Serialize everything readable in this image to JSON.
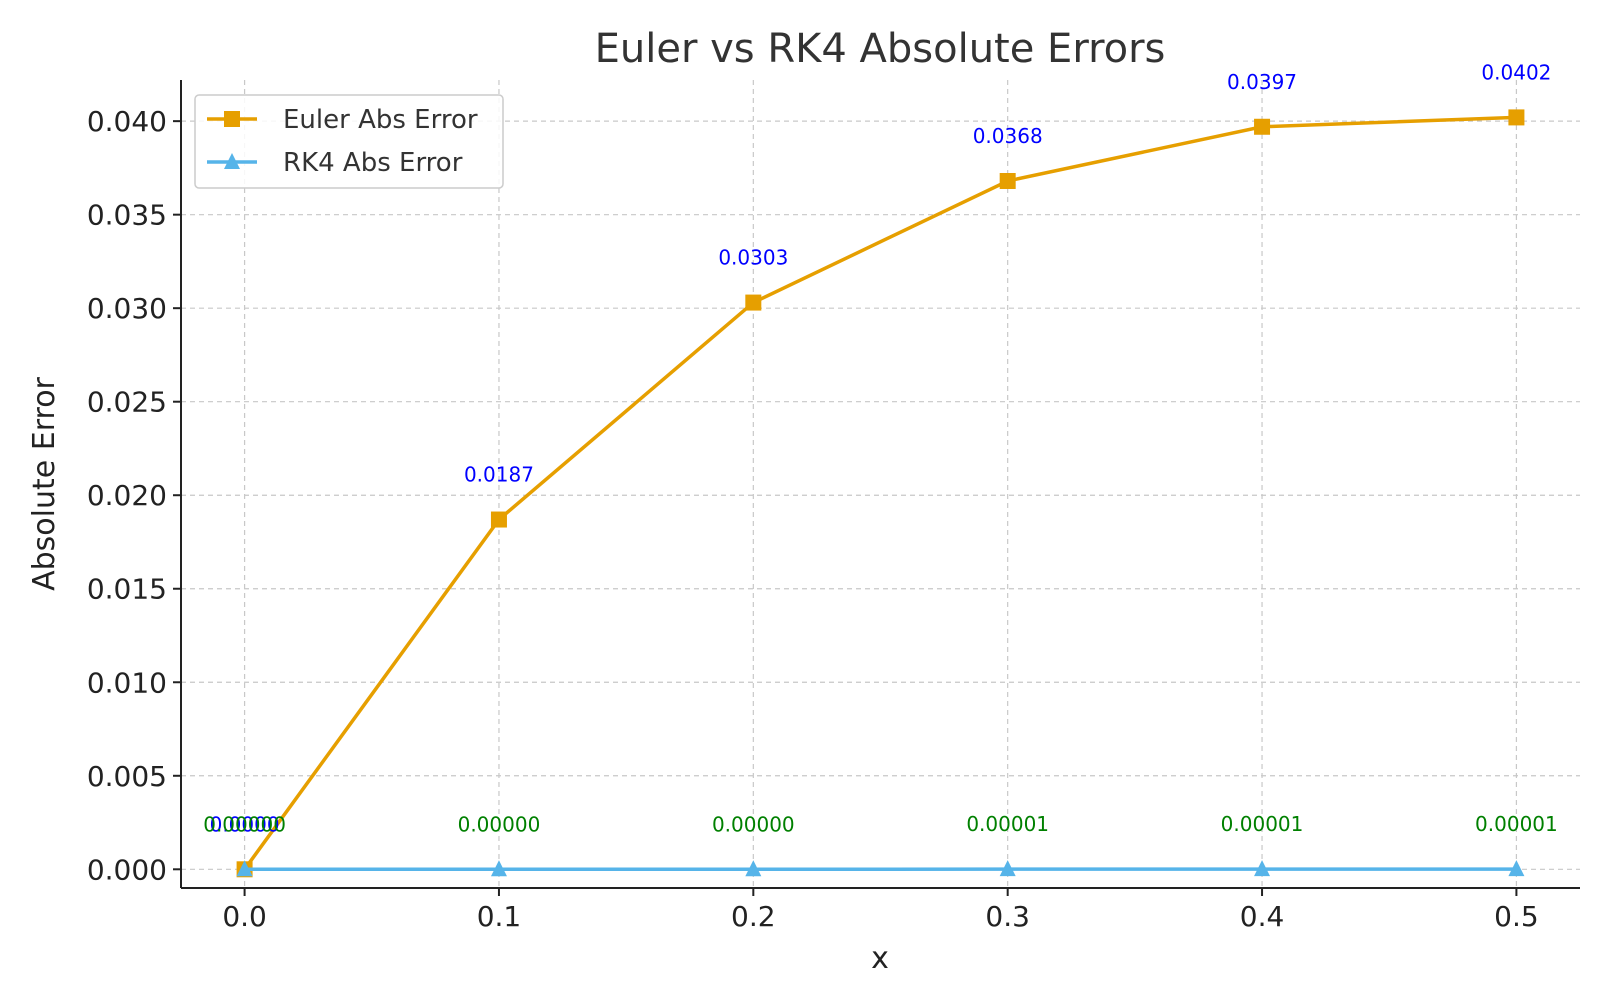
{
  "chart_data": {
    "type": "line",
    "title": "Euler vs RK4 Absolute Errors",
    "xlabel": "x",
    "ylabel": "Absolute Error",
    "x": [
      0.0,
      0.1,
      0.2,
      0.3,
      0.4,
      0.5
    ],
    "x_ticks": [
      "0.0",
      "0.1",
      "0.2",
      "0.3",
      "0.4",
      "0.5"
    ],
    "y_ticks": [
      "0.000",
      "0.005",
      "0.010",
      "0.015",
      "0.020",
      "0.025",
      "0.030",
      "0.035",
      "0.040"
    ],
    "xlim": [
      -0.025,
      0.525
    ],
    "ylim": [
      -0.001,
      0.0422
    ],
    "grid": true,
    "legend_position": "top-left",
    "series": [
      {
        "name": "Euler Abs Error",
        "color": "#E69F00",
        "marker": "square",
        "label_color": "#0000FF",
        "values": [
          0.0,
          0.0187,
          0.0303,
          0.0368,
          0.0397,
          0.0402
        ],
        "labels": [
          "0.0000",
          "0.0187",
          "0.0303",
          "0.0368",
          "0.0397",
          "0.0402"
        ]
      },
      {
        "name": "RK4 Abs Error",
        "color": "#56B4E9",
        "marker": "triangle",
        "label_color": "#008000",
        "values": [
          0.0,
          0.0,
          0.0,
          1e-05,
          1e-05,
          1e-05
        ],
        "labels": [
          "0.00000",
          "0.00000",
          "0.00000",
          "0.00001",
          "0.00001",
          "0.00001"
        ]
      }
    ]
  }
}
